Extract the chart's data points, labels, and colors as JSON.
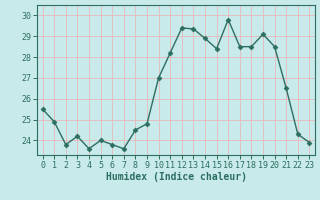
{
  "x": [
    0,
    1,
    2,
    3,
    4,
    5,
    6,
    7,
    8,
    9,
    10,
    11,
    12,
    13,
    14,
    15,
    16,
    17,
    18,
    19,
    20,
    21,
    22,
    23
  ],
  "y": [
    25.5,
    24.9,
    23.8,
    24.2,
    23.6,
    24.0,
    23.8,
    23.6,
    24.5,
    24.8,
    27.0,
    28.2,
    29.4,
    29.35,
    28.9,
    28.4,
    29.8,
    28.5,
    28.5,
    29.1,
    28.5,
    26.5,
    24.3,
    23.9
  ],
  "line_color": "#2d6e62",
  "bg_color": "#c8eaea",
  "grid_color": "#e8b8b8",
  "ylabel_ticks": [
    24,
    25,
    26,
    27,
    28,
    29,
    30
  ],
  "ylim": [
    23.3,
    30.5
  ],
  "xlim": [
    -0.5,
    23.5
  ],
  "xlabel": "Humidex (Indice chaleur)",
  "marker": "D",
  "marker_size": 2.5,
  "line_width": 1.0,
  "tick_color": "#2d6e62",
  "label_color": "#2d6e62",
  "font_size": 7
}
